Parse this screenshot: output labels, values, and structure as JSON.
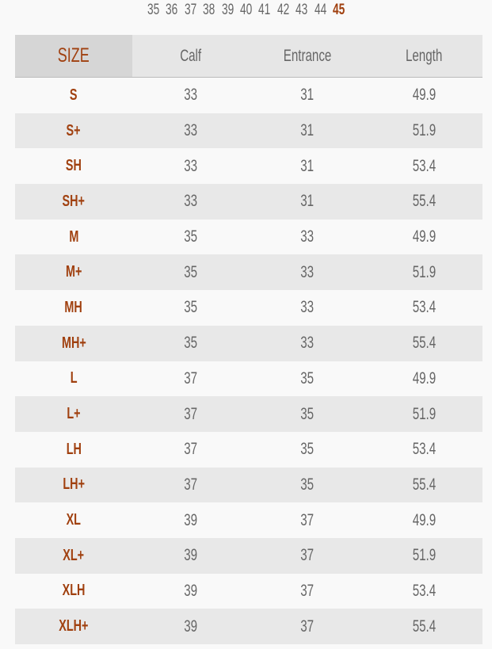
{
  "shoe_sizes": {
    "items": [
      "35",
      "36",
      "37",
      "38",
      "39",
      "40",
      "41",
      "42",
      "43",
      "44",
      "45"
    ],
    "selected": "45",
    "accent_color": "#a0400f"
  },
  "table": {
    "headers": [
      "SIZE",
      "Calf",
      "Entrance",
      "Length"
    ],
    "rows": [
      [
        "S",
        "33",
        "31",
        "49.9"
      ],
      [
        "S+",
        "33",
        "31",
        "51.9"
      ],
      [
        "SH",
        "33",
        "31",
        "53.4"
      ],
      [
        "SH+",
        "33",
        "31",
        "55.4"
      ],
      [
        "M",
        "35",
        "33",
        "49.9"
      ],
      [
        "M+",
        "35",
        "33",
        "51.9"
      ],
      [
        "MH",
        "35",
        "33",
        "53.4"
      ],
      [
        "MH+",
        "35",
        "33",
        "55.4"
      ],
      [
        "L",
        "37",
        "35",
        "49.9"
      ],
      [
        "L+",
        "37",
        "35",
        "51.9"
      ],
      [
        "LH",
        "37",
        "35",
        "53.4"
      ],
      [
        "LH+",
        "37",
        "35",
        "55.4"
      ],
      [
        "XL",
        "39",
        "37",
        "49.9"
      ],
      [
        "XL+",
        "39",
        "37",
        "51.9"
      ],
      [
        "XLH",
        "39",
        "37",
        "53.4"
      ],
      [
        "XLH+",
        "39",
        "37",
        "55.4"
      ]
    ]
  }
}
